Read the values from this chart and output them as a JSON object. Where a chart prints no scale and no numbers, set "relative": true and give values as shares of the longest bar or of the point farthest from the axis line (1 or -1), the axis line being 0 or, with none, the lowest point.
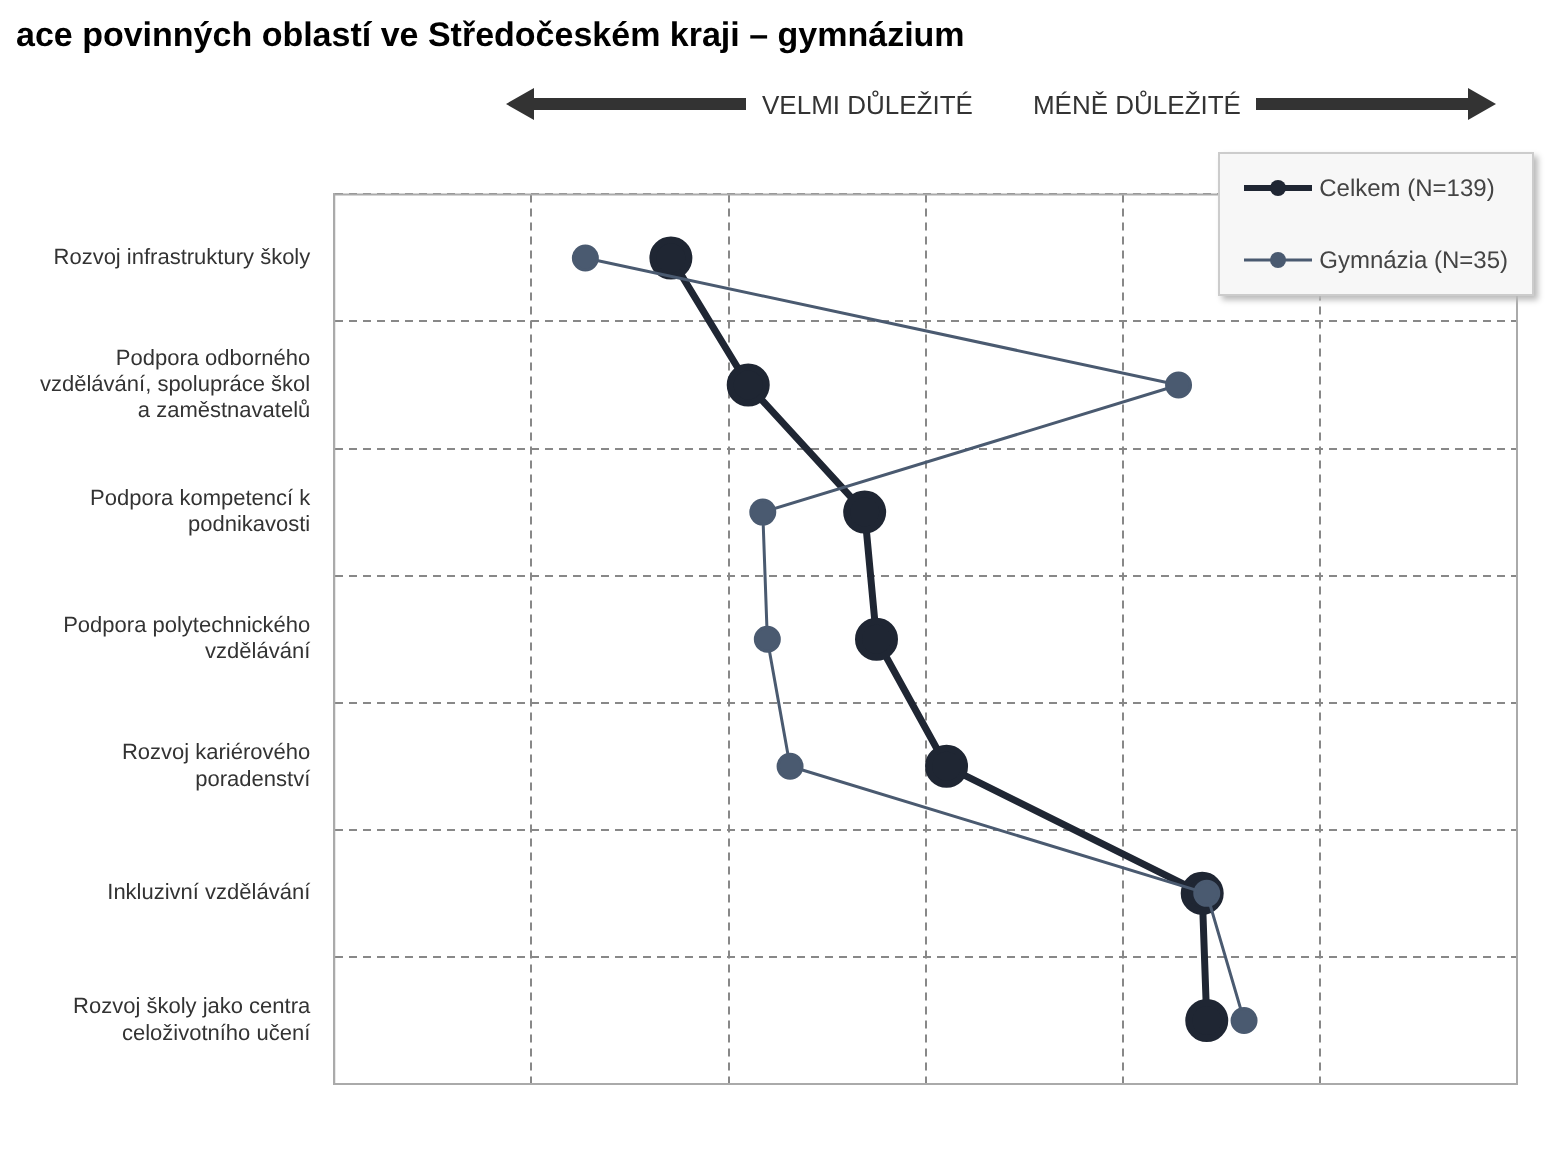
{
  "chart_data": {
    "type": "line",
    "orientation": "horizontal",
    "relative": true,
    "title": "ace povinných oblastí ve Středočeském kraji – gymnázium",
    "annotations": [
      "VELMI DŮLEŽITÉ",
      "MÉNĚ DŮLEŽITÉ"
    ],
    "categories": [
      "Rozvoj infrastruktury školy",
      "Podpora odborného vzdělávání, spolupráce škol a zaměstnavatelů",
      "Podpora kompetencí k podnikavosti",
      "Podpora polytechnického vzdělávání",
      "Rozvoj kariérového poradenství",
      "Inkluzivní vzdělávání",
      "Rozvoj školy jako centra celoživotního učení"
    ],
    "series": [
      {
        "name": "Celkem (N=139)",
        "color": "#1f2633",
        "values": [
          0.37,
          0.455,
          0.583,
          0.596,
          0.673,
          0.954,
          0.959
        ]
      },
      {
        "name": "Gymnázia (N=35)",
        "color": "#4a5a70",
        "values": [
          0.276,
          0.928,
          0.471,
          0.476,
          0.501,
          0.959,
          1
        ]
      }
    ],
    "grid": true,
    "legend": "top right",
    "marker": "circle",
    "line_style": "solid"
  }
}
